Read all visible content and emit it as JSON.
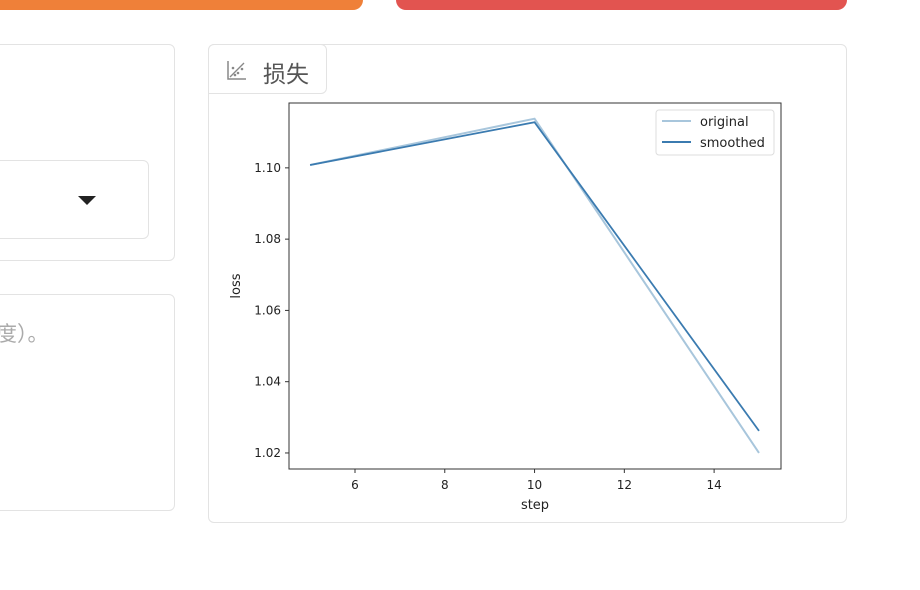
{
  "left": {
    "hint_text": "度）。"
  },
  "tab": {
    "label": "损失",
    "icon": "scatter-chart-icon"
  },
  "colors": {
    "orange": "#ef8039",
    "red": "#e25450",
    "original": "#a8c6dc",
    "smoothed": "#3b7bb0"
  },
  "chart_data": {
    "type": "line",
    "xlabel": "step",
    "ylabel": "loss",
    "xlim": [
      4.53,
      15.49
    ],
    "ylim": [
      1.0155,
      1.1182
    ],
    "xticks": [
      6,
      8,
      10,
      12,
      14
    ],
    "yticks": [
      1.02,
      1.04,
      1.06,
      1.08,
      1.1
    ],
    "ytick_labels": [
      "1.02",
      "1.04",
      "1.06",
      "1.08",
      "1.10"
    ],
    "grid": false,
    "legend_placement": "top-right",
    "series": [
      {
        "name": "original",
        "x": [
          5,
          10,
          15
        ],
        "y": [
          1.1008,
          1.1138,
          1.02
        ]
      },
      {
        "name": "smoothed",
        "x": [
          5,
          10,
          15
        ],
        "y": [
          1.1008,
          1.1128,
          1.0262
        ]
      }
    ]
  }
}
